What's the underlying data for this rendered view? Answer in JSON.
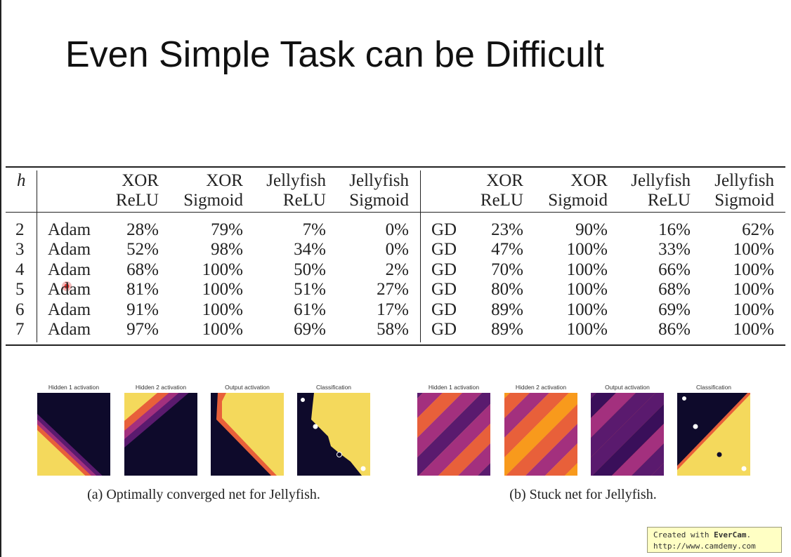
{
  "title": "Even Simple Task can be Difficult",
  "table": {
    "header": {
      "h": "h",
      "columns": [
        [
          "XOR",
          "ReLU"
        ],
        [
          "XOR",
          "Sigmoid"
        ],
        [
          "Jellyfish",
          "ReLU"
        ],
        [
          "Jellyfish",
          "Sigmoid"
        ],
        [
          "XOR",
          "ReLU"
        ],
        [
          "XOR",
          "Sigmoid"
        ],
        [
          "Jellyfish",
          "ReLU"
        ],
        [
          "Jellyfish",
          "Sigmoid"
        ]
      ]
    },
    "rows": [
      [
        "2",
        "Adam",
        "28%",
        "79%",
        "7%",
        "0%",
        "GD",
        "23%",
        "90%",
        "16%",
        "62%"
      ],
      [
        "3",
        "Adam",
        "52%",
        "98%",
        "34%",
        "0%",
        "GD",
        "47%",
        "100%",
        "33%",
        "100%"
      ],
      [
        "4",
        "Adam",
        "68%",
        "100%",
        "50%",
        "2%",
        "GD",
        "70%",
        "100%",
        "66%",
        "100%"
      ],
      [
        "5",
        "Adam",
        "81%",
        "100%",
        "51%",
        "27%",
        "GD",
        "80%",
        "100%",
        "68%",
        "100%"
      ],
      [
        "6",
        "Adam",
        "91%",
        "100%",
        "61%",
        "17%",
        "GD",
        "89%",
        "100%",
        "69%",
        "100%"
      ],
      [
        "7",
        "Adam",
        "97%",
        "100%",
        "69%",
        "58%",
        "GD",
        "89%",
        "100%",
        "86%",
        "100%"
      ]
    ]
  },
  "figures": [
    {
      "panels": [
        "Hidden 1 activation",
        "Hidden 2 activation",
        "Output activation",
        "Classification"
      ],
      "caption": "(a) Optimally converged net for Jellyfish."
    },
    {
      "panels": [
        "Hidden 1 activation",
        "Hidden 2 activation",
        "Output activation",
        "Classification"
      ],
      "caption": "(b) Stuck net for Jellyfish."
    }
  ],
  "watermark": {
    "prefix": "Created with ",
    "brand": "EverCam",
    "suffix": ".",
    "url": "http://www.camdemy.com"
  }
}
